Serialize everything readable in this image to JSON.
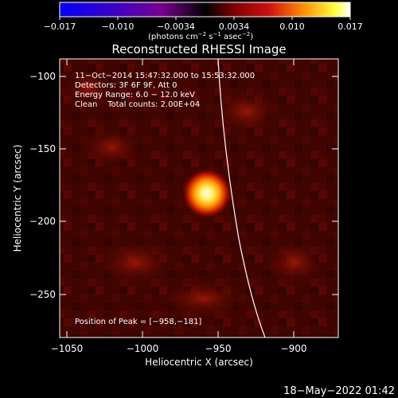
{
  "colorbar": {
    "ticks": [
      "−0.017",
      "−0.010",
      "−0.0034",
      "0.0034",
      "0.010",
      "0.017"
    ],
    "units_main": "(photons cm",
    "units_exp1": "−2",
    "units_mid": " s",
    "units_exp2": "−1",
    "units_end": " asec",
    "units_exp3": "−2",
    "units_close": ")"
  },
  "plot": {
    "title": "Reconstructed RHESSI Image",
    "xlabel": "Heliocentric X (arcsec)",
    "ylabel": "Heliocentric Y (arcsec)",
    "x_ticks": [
      "−1050",
      "−1000",
      "−950",
      "−900"
    ],
    "y_ticks": [
      "−100",
      "−150",
      "−200",
      "−250"
    ],
    "info": [
      "11−Oct−2014 15:47:32.000 to 15:53:32.000",
      "Detectors: 3F 6F 9F, Att 0",
      "Energy Range: 6.0 − 12.0 keV",
      "Clean    Total counts: 2.00E+04"
    ],
    "peak_label": "Position of Peak = [−958,−181]"
  },
  "footer": {
    "timestamp": "18−May−2022 01:42"
  }
}
